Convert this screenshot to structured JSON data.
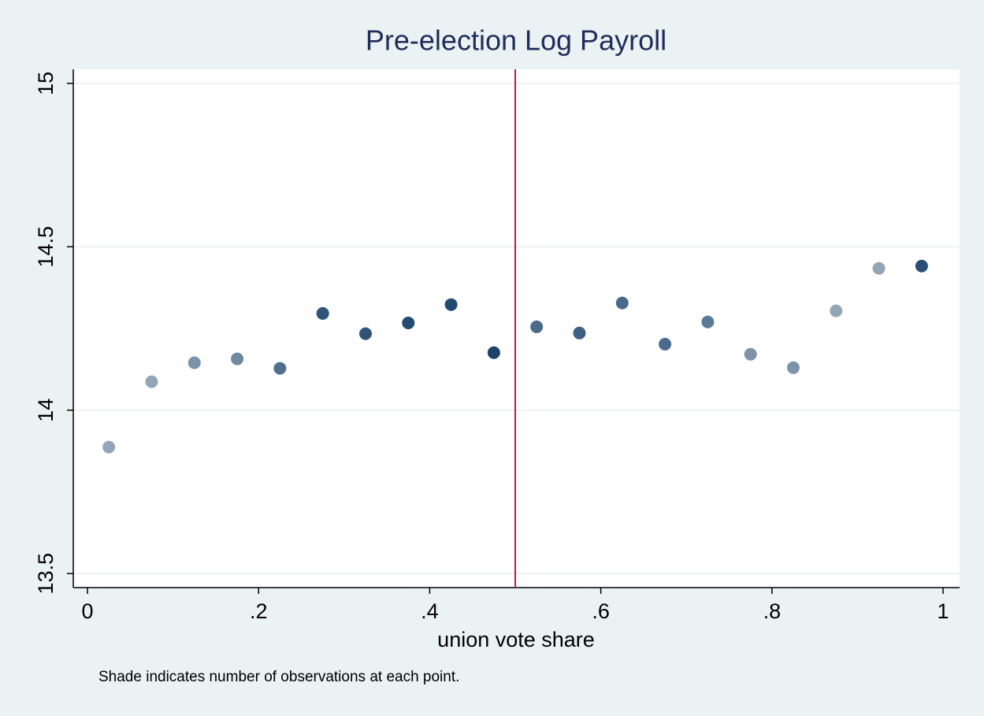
{
  "chart_data": {
    "type": "scatter",
    "title": "Pre-election Log Payroll",
    "x_label": "union vote share",
    "note": "Shade indicates number of observations at each point.",
    "x": [
      0.025,
      0.075,
      0.125,
      0.175,
      0.225,
      0.275,
      0.325,
      0.375,
      0.425,
      0.475,
      0.525,
      0.575,
      0.625,
      0.675,
      0.725,
      0.775,
      0.825,
      0.875,
      0.925,
      0.975
    ],
    "values": [
      13.887,
      14.087,
      14.145,
      14.157,
      14.128,
      14.296,
      14.234,
      14.267,
      14.323,
      14.176,
      14.255,
      14.236,
      14.328,
      14.202,
      14.27,
      14.171,
      14.13,
      14.304,
      14.434,
      14.441
    ],
    "colors": [
      "#93a6b8",
      "#93a6b8",
      "#7d93a9",
      "#6f89a1",
      "#4f6f8e",
      "#2f5478",
      "#2f5478",
      "#234a70",
      "#234a70",
      "#1d4369",
      "#4a6b8b",
      "#3d6083",
      "#4a6b8b",
      "#4a6b8b",
      "#5b7a96",
      "#7d93a9",
      "#7d93a9",
      "#93a6b8",
      "#93a6b8",
      "#2a4f74"
    ],
    "reference_line": {
      "x": 0.5,
      "color": "#c0143c"
    },
    "xlim": [
      -0.0166,
      1.0193
    ],
    "ylim": [
      13.457,
      15.043
    ],
    "xticks": [
      {
        "value": 0,
        "label": "0"
      },
      {
        "value": 0.2,
        "label": ".2"
      },
      {
        "value": 0.4,
        "label": ".4"
      },
      {
        "value": 0.6,
        "label": ".6"
      },
      {
        "value": 0.8,
        "label": ".8"
      },
      {
        "value": 1,
        "label": "1"
      }
    ],
    "yticks": [
      13.5,
      14,
      14.5,
      15
    ],
    "grid": true
  }
}
